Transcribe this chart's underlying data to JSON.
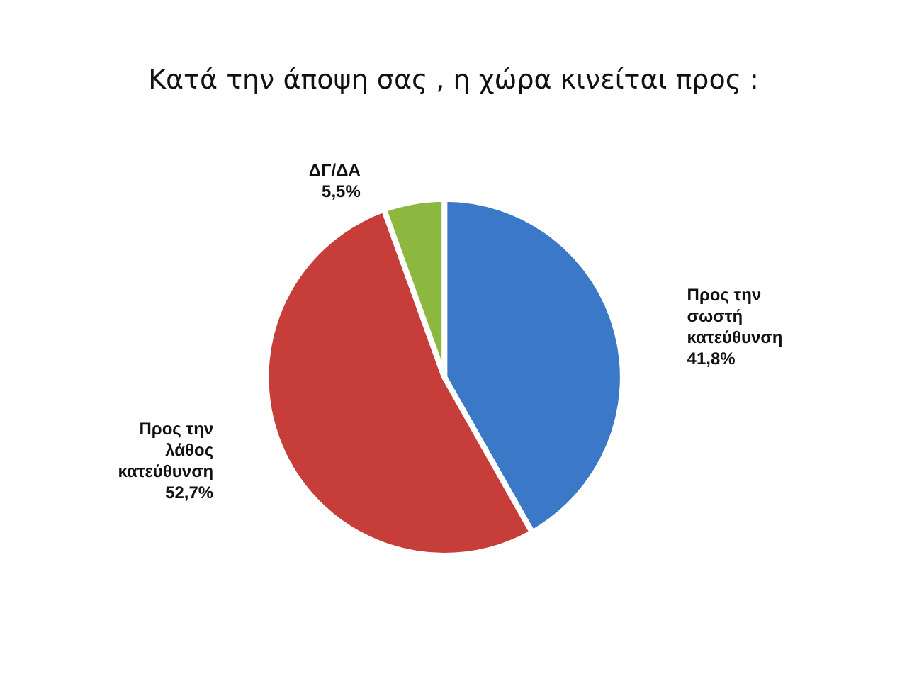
{
  "chart_data": {
    "type": "pie",
    "title": "Κατά την άποψη σας , η χώρα κινείται προς :",
    "categories": [
      "Προς την σωστή κατεύθυνση",
      "Προς την λάθος κατεύθυνση",
      "ΔΓ/ΔΑ"
    ],
    "values": [
      41.8,
      52.7,
      5.5
    ],
    "colors": [
      "#3b78c8",
      "#c63d3a",
      "#8cb840"
    ],
    "value_labels": [
      "41,8%",
      "52,7%",
      "5,5%"
    ],
    "legend": false
  }
}
